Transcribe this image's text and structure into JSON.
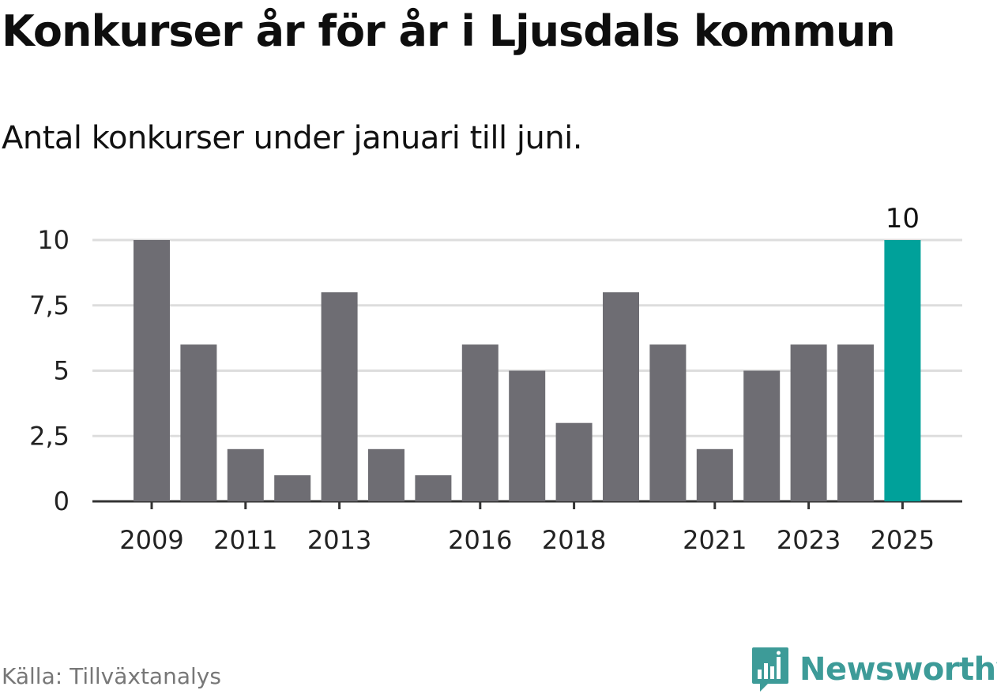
{
  "header": {
    "title": "Konkurser år för år i Ljusdals kommun",
    "subtitle": "Antal konkurser under januari till juni."
  },
  "footer": {
    "source": "Källa: Tillväxtanalys",
    "brand": "Newsworthy",
    "brand_icon": "bar-chart-speech-bubble-icon"
  },
  "colors": {
    "bar": "#6e6d73",
    "highlight": "#00a19a",
    "grid": "#dddddd",
    "axis": "#333333",
    "brand": "#3d9b98"
  },
  "chart_data": {
    "type": "bar",
    "categories": [
      "2009",
      "2010",
      "2011",
      "2012",
      "2013",
      "2014",
      "2015",
      "2016",
      "2017",
      "2018",
      "2019",
      "2020",
      "2021",
      "2022",
      "2023",
      "2024",
      "2025"
    ],
    "values": [
      10,
      6,
      2,
      1,
      8,
      2,
      1,
      6,
      5,
      3,
      8,
      6,
      2,
      5,
      6,
      6,
      10
    ],
    "highlight_index": 16,
    "highlight_label": "10",
    "x_tick_labels": [
      "2009",
      "2011",
      "2013",
      "2016",
      "2018",
      "2021",
      "2023",
      "2025"
    ],
    "y_ticks": [
      0,
      2.5,
      5,
      7.5,
      10
    ],
    "y_tick_labels": [
      "0",
      "2,5",
      "5",
      "7,5",
      "10"
    ],
    "ylim": [
      0,
      10
    ],
    "grid": true,
    "legend": "none",
    "xlabel": "",
    "ylabel": ""
  }
}
